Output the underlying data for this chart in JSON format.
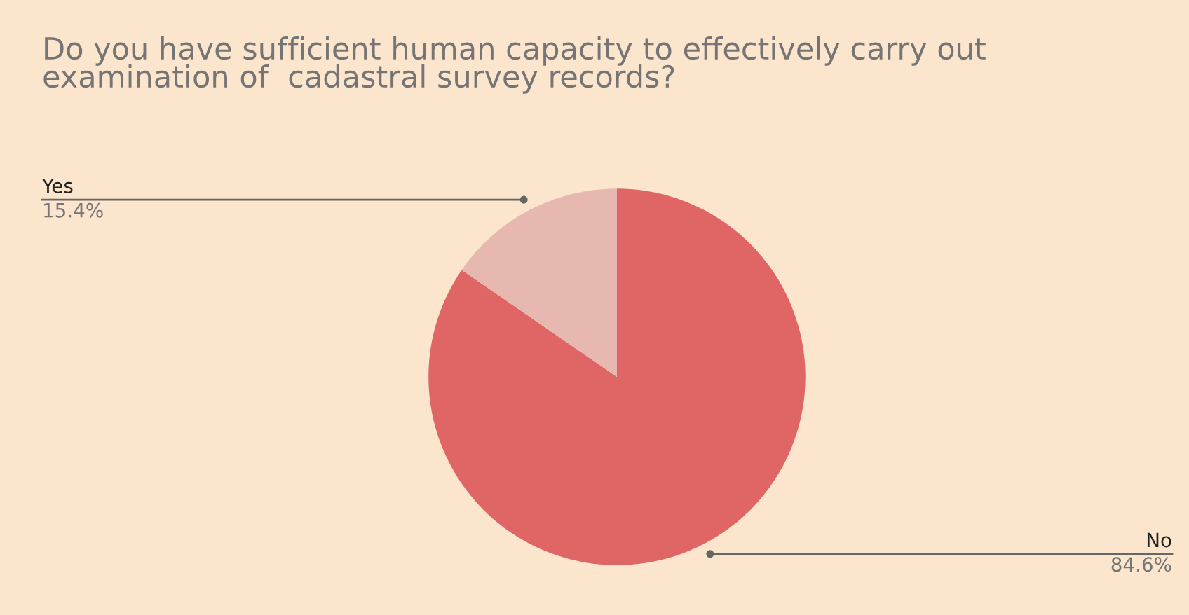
{
  "chart_data": {
    "type": "pie",
    "title": "Do you have sufficient human capacity to effectively carry out\nexamination of  cadastral survey records?",
    "categories": [
      "No",
      "Yes"
    ],
    "values": [
      84.6,
      15.4
    ],
    "colors": [
      "#e06666",
      "#e6b8af"
    ],
    "value_labels": [
      "84.6%",
      "15.4%"
    ],
    "legend": false
  }
}
